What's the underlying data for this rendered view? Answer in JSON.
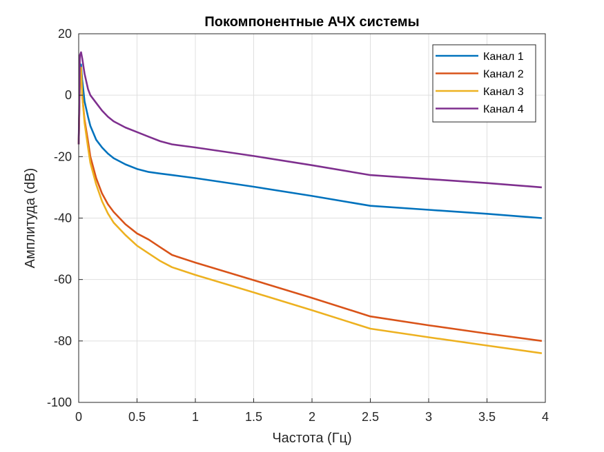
{
  "chart_data": {
    "type": "line",
    "title": "Покомпонентные АЧХ системы",
    "xlabel": "Частота (Гц)",
    "ylabel": "Амплитуда (dB)",
    "xlim": [
      0,
      4
    ],
    "ylim": [
      -100,
      20
    ],
    "xticks": [
      0,
      0.5,
      1,
      1.5,
      2,
      2.5,
      3,
      3.5,
      4
    ],
    "xtick_labels": [
      "0",
      "0.5",
      "1",
      "1.5",
      "2",
      "2.5",
      "3",
      "3.5",
      "4"
    ],
    "yticks": [
      -100,
      -80,
      -60,
      -40,
      -20,
      0,
      20
    ],
    "ytick_labels": [
      "-100",
      "-80",
      "-60",
      "-40",
      "-20",
      "0",
      "20"
    ],
    "grid": true,
    "legend_position": "top-right",
    "series": [
      {
        "name": "Канал 1",
        "color": "#0072BD",
        "x": [
          0,
          0.01,
          0.02,
          0.03,
          0.05,
          0.08,
          0.1,
          0.15,
          0.2,
          0.25,
          0.3,
          0.4,
          0.5,
          0.6,
          0.7,
          0.8,
          1.0,
          1.5,
          2.0,
          2.5,
          3.0,
          3.5,
          3.97
        ],
        "y": [
          -16,
          5,
          10,
          5,
          -2,
          -7,
          -10,
          -14.5,
          -17,
          -19,
          -20.5,
          -22.5,
          -24,
          -25,
          -25.5,
          -26,
          -27,
          -29.8,
          -32.8,
          -36,
          -37.3,
          -38.6,
          -40
        ]
      },
      {
        "name": "Канал 2",
        "color": "#D95319",
        "x": [
          0,
          0.01,
          0.02,
          0.03,
          0.05,
          0.08,
          0.1,
          0.15,
          0.2,
          0.25,
          0.3,
          0.4,
          0.5,
          0.6,
          0.7,
          0.8,
          1.0,
          1.5,
          2.0,
          2.5,
          3.0,
          3.5,
          3.97
        ],
        "y": [
          -16,
          5,
          9,
          0,
          -8,
          -15,
          -20,
          -27,
          -32,
          -35.5,
          -38,
          -42,
          -45,
          -47,
          -49.5,
          -52,
          -54.5,
          -60.2,
          -66,
          -72,
          -74.9,
          -77.6,
          -80
        ]
      },
      {
        "name": "Канал 3",
        "color": "#EDB120",
        "x": [
          0,
          0.01,
          0.02,
          0.03,
          0.05,
          0.08,
          0.1,
          0.15,
          0.2,
          0.25,
          0.3,
          0.4,
          0.5,
          0.6,
          0.7,
          0.8,
          1.0,
          1.5,
          2.0,
          2.5,
          3.0,
          3.5,
          3.97
        ],
        "y": [
          -16,
          5,
          9,
          0,
          -9,
          -17,
          -22,
          -29,
          -34.5,
          -38.5,
          -41.5,
          -45.5,
          -49,
          -51.5,
          -54,
          -56,
          -58.5,
          -64.2,
          -70,
          -76,
          -78.8,
          -81.5,
          -84
        ]
      },
      {
        "name": "Канал 4",
        "color": "#7E2F8E",
        "x": [
          0,
          0.01,
          0.02,
          0.03,
          0.05,
          0.08,
          0.1,
          0.15,
          0.2,
          0.25,
          0.3,
          0.4,
          0.5,
          0.6,
          0.7,
          0.8,
          1.0,
          1.5,
          2.0,
          2.5,
          3.0,
          3.5,
          3.97
        ],
        "y": [
          -16,
          13,
          14,
          12,
          7,
          2,
          0,
          -2.5,
          -5,
          -7,
          -8.5,
          -10.5,
          -12,
          -13.5,
          -15,
          -16,
          -17,
          -19.8,
          -22.8,
          -26,
          -27.3,
          -28.6,
          -30
        ]
      }
    ]
  }
}
